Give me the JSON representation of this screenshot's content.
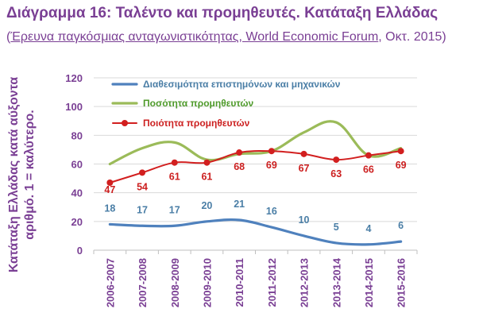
{
  "header": {
    "title": "Διάγραμμα 16: Ταλέντο και προμηθευτές. Κατάταξη Ελλάδας",
    "subtitle_open": "(",
    "subtitle_source": "Έρευνα παγκόσμιας ανταγωνιστικότητας, World Economic Forum",
    "subtitle_rest": ", Οκτ. 2015)"
  },
  "chart_data": {
    "type": "line",
    "title": "Διάγραμμα 16: Ταλέντο και προμηθευτές. Κατάταξη Ελλάδας",
    "ylabel_line1": "Κατάταξη Ελλάδας κατά αύξοντα",
    "ylabel_line2": "αριθμό. 1 = καλύτερο.",
    "ylim": [
      0,
      120
    ],
    "yticks": [
      0,
      20,
      40,
      60,
      80,
      100,
      120
    ],
    "categories": [
      "2006-2007",
      "2007-2008",
      "2008-2009",
      "2009-2010",
      "2010-2011",
      "2011-2012",
      "2012-2013",
      "2013-2014",
      "2014-2015",
      "2015-2016"
    ],
    "legend_position": "top-left",
    "series": [
      {
        "name": "Διαθεσιμότητα επιστημόνων και μηχανικών",
        "values": [
          18,
          17,
          17,
          20,
          21,
          16,
          10,
          5,
          4,
          6
        ],
        "color": "#4f81bd",
        "label_color": "#4a7ea6",
        "markers": false,
        "show_labels": true
      },
      {
        "name": "Ποσότητα προμηθευτών",
        "values": [
          60,
          71,
          75,
          63,
          67,
          69,
          82,
          89,
          66,
          71
        ],
        "color": "#9bbb59",
        "label_color": "#4e9a2a",
        "markers": false,
        "show_labels": false
      },
      {
        "name": "Ποιότητα προμηθευτών",
        "values": [
          47,
          54,
          61,
          61,
          68,
          69,
          67,
          63,
          66,
          69
        ],
        "color": "#d21f1f",
        "label_color": "#cc1f1f",
        "markers": true,
        "show_labels": true
      }
    ]
  }
}
